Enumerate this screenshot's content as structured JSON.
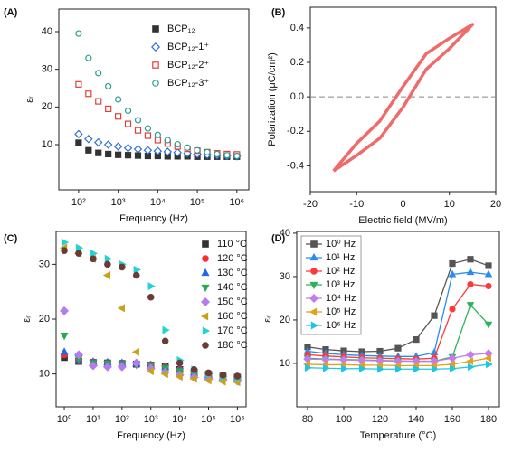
{
  "chart_data": [
    {
      "type": "scatter",
      "label": "(A)",
      "xlabel": "Frequency (Hz)",
      "ylabel": "εᵣ",
      "xscale": "log",
      "xlim": [
        31.6,
        2000000
      ],
      "ylim": [
        -2,
        46
      ],
      "xticks": [
        {
          "value": 100,
          "label": "10²"
        },
        {
          "value": 1000,
          "label": "10³"
        },
        {
          "value": 10000,
          "label": "10⁴"
        },
        {
          "value": 100000,
          "label": "10⁵"
        },
        {
          "value": 1000000,
          "label": "10⁶"
        }
      ],
      "yticks": [
        10,
        20,
        30,
        40
      ],
      "legend": "upper right",
      "x": [
        100,
        178,
        316,
        562,
        1000,
        1778,
        3162,
        5623,
        10000,
        17783,
        31623,
        56234,
        100000,
        177828,
        316228,
        562341,
        1000000
      ],
      "series": [
        {
          "name": "BCP₁₂",
          "color": "#333333",
          "marker": "square",
          "filled": true,
          "values": [
            10.5,
            8.5,
            7.8,
            7.5,
            7.3,
            7.2,
            7.1,
            7.0,
            7.0,
            6.9,
            6.9,
            6.9,
            6.8,
            6.8,
            6.8,
            6.8,
            6.8
          ]
        },
        {
          "name": "BCP₁₂-1⁺",
          "color": "#2e6fd8",
          "marker": "diamond",
          "filled": false,
          "values": [
            12.8,
            11.5,
            10.6,
            10.0,
            9.5,
            9.1,
            8.8,
            8.5,
            8.3,
            8.1,
            7.9,
            7.7,
            7.5,
            7.3,
            7.2,
            7.0,
            6.9
          ]
        },
        {
          "name": "BCP₁₂-2⁺",
          "color": "#e0403a",
          "marker": "square",
          "filled": false,
          "values": [
            26,
            23.5,
            21.5,
            19.5,
            17.5,
            15.5,
            13.8,
            12.4,
            11.2,
            10.3,
            9.5,
            8.9,
            8.4,
            8.0,
            7.7,
            7.5,
            7.4
          ]
        },
        {
          "name": "BCP₁₂-3⁺",
          "color": "#2a9d8f",
          "marker": "circle",
          "filled": false,
          "values": [
            39.5,
            33,
            29,
            25.5,
            22,
            19,
            16.5,
            14.3,
            12.6,
            11.2,
            10.1,
            9.2,
            8.5,
            8.0,
            7.5,
            7.2,
            7.0
          ]
        }
      ]
    },
    {
      "type": "line",
      "label": "(B)",
      "xlabel": "Electric field (MV/m)",
      "ylabel": "Polarization (μC/cm²)",
      "xlim": [
        -20,
        20
      ],
      "ylim": [
        -0.55,
        0.52
      ],
      "xticks": [
        -20,
        -10,
        0,
        10,
        20
      ],
      "yticks": [
        -0.4,
        -0.2,
        {
          "value": 0,
          "label": "0.0"
        },
        0.2,
        0.4
      ],
      "hlines": [
        0
      ],
      "vlines": [
        0
      ],
      "x": [
        -15,
        -10,
        -5,
        0,
        5,
        10,
        15,
        10,
        5,
        0,
        -5,
        -10,
        -15
      ],
      "series": [
        {
          "color": "#f06a6a",
          "values": [
            -0.43,
            -0.34,
            -0.24,
            -0.06,
            0.16,
            0.28,
            0.42,
            0.34,
            0.25,
            0.06,
            -0.14,
            -0.27,
            -0.43
          ]
        }
      ]
    },
    {
      "type": "scatter",
      "label": "(C)",
      "xlabel": "Frequency (Hz)",
      "ylabel": "εᵣ",
      "xscale": "log",
      "xlim": [
        0.52,
        2000000
      ],
      "ylim": [
        4,
        36
      ],
      "xticks": [
        {
          "value": 1,
          "label": "10⁰"
        },
        {
          "value": 10,
          "label": "10¹"
        },
        {
          "value": 100,
          "label": "10²"
        },
        {
          "value": 1000,
          "label": "10³"
        },
        {
          "value": 10000,
          "label": "10⁴"
        },
        {
          "value": 100000,
          "label": "10⁵"
        },
        {
          "value": 1000000,
          "label": "10⁶"
        }
      ],
      "yticks": [
        10,
        20,
        30
      ],
      "legend": "right",
      "x": [
        1,
        3.162,
        10,
        31.62,
        100,
        316.2,
        1000,
        3162,
        10000,
        31620,
        100000,
        316200,
        1000000
      ],
      "series": [
        {
          "name": "110 °C",
          "color": "#333333",
          "marker": "square",
          "filled": true,
          "values": [
            13,
            12.3,
            12.1,
            12.0,
            11.9,
            11.8,
            11.6,
            11.3,
            10.8,
            10.3,
            9.9,
            9.6,
            9.4
          ]
        },
        {
          "name": "120 °C",
          "color": "#ff2a2a",
          "marker": "circle",
          "filled": true,
          "values": [
            13.5,
            12.4,
            12.2,
            12.1,
            12.0,
            11.9,
            11.7,
            11.3,
            10.8,
            10.3,
            9.9,
            9.6,
            9.4
          ]
        },
        {
          "name": "130 °C",
          "color": "#2266ee",
          "marker": "triangle-up",
          "filled": true,
          "values": [
            14,
            12.5,
            12.2,
            12.1,
            12.0,
            11.9,
            11.6,
            11.2,
            10.7,
            10.2,
            9.8,
            9.5,
            9.3
          ]
        },
        {
          "name": "140 °C",
          "color": "#22aa55",
          "marker": "triangle-down",
          "filled": true,
          "values": [
            17,
            12.8,
            12.0,
            11.9,
            11.8,
            11.7,
            11.5,
            11.0,
            10.5,
            10.0,
            9.6,
            9.3,
            9.1
          ]
        },
        {
          "name": "150 °C",
          "color": "#b57bef",
          "marker": "diamond",
          "filled": true,
          "values": [
            21.5,
            13.5,
            11.5,
            11.3,
            11.3,
            12.0,
            11.0,
            10.3,
            9.8,
            9.4,
            9.1,
            8.9,
            8.7
          ]
        },
        {
          "name": "160 °C",
          "color": "#c9a21a",
          "marker": "triangle-left",
          "filled": true,
          "values": [
            33,
            32,
            31,
            28,
            22,
            14,
            10.5,
            10.0,
            9.5,
            9.1,
            8.8,
            8.6,
            8.5
          ]
        },
        {
          "name": "170 °C",
          "color": "#22d3d3",
          "marker": "triangle-right",
          "filled": true,
          "values": [
            34,
            33,
            32,
            31,
            30,
            29,
            26,
            18,
            12.5,
            10.8,
            10.0,
            9.5,
            9.2
          ]
        },
        {
          "name": "180 °C",
          "color": "#6b3b34",
          "marker": "circle",
          "filled": true,
          "values": [
            32.5,
            32,
            31,
            30,
            29.5,
            28,
            24,
            16,
            12,
            10.8,
            10.2,
            9.8,
            9.6
          ]
        }
      ]
    },
    {
      "type": "line",
      "label": "(D)",
      "xlabel": "Temperature (°C)",
      "ylabel": "εᵣ",
      "xlim": [
        74,
        186
      ],
      "ylim": [
        0,
        40.4
      ],
      "xticks": [
        80,
        100,
        120,
        140,
        160,
        180
      ],
      "yticks": [
        10,
        20,
        30,
        40
      ],
      "legend": "upper left",
      "x": [
        80,
        90,
        100,
        110,
        120,
        130,
        140,
        150,
        160,
        170,
        180
      ],
      "series": [
        {
          "name": "10⁰ Hz",
          "color": "#555555",
          "marker": "square",
          "filled": true,
          "values": [
            13.8,
            13.2,
            12.9,
            12.7,
            12.8,
            13.5,
            15.5,
            21,
            33,
            34,
            32.5
          ]
        },
        {
          "name": "10¹ Hz",
          "color": "#2a8cf0",
          "marker": "triangle-up",
          "filled": true,
          "values": [
            12.8,
            12.3,
            12.0,
            11.8,
            11.7,
            11.6,
            11.6,
            12.5,
            30.5,
            31,
            30.5
          ]
        },
        {
          "name": "10² Hz",
          "color": "#ff3838",
          "marker": "circle",
          "filled": true,
          "values": [
            12.0,
            11.7,
            11.5,
            11.3,
            11.2,
            11.1,
            11.0,
            11.2,
            22.5,
            28.2,
            27.8
          ]
        },
        {
          "name": "10³ Hz",
          "color": "#2cb35a",
          "marker": "triangle-down",
          "filled": true,
          "values": [
            11.2,
            11.0,
            10.9,
            10.8,
            10.7,
            10.6,
            10.5,
            10.5,
            11.5,
            23.5,
            19
          ]
        },
        {
          "name": "10⁴ Hz",
          "color": "#c27cf2",
          "marker": "diamond",
          "filled": true,
          "values": [
            11.0,
            10.9,
            10.8,
            10.7,
            10.6,
            10.5,
            10.5,
            10.5,
            11.2,
            12,
            12.3
          ]
        },
        {
          "name": "10⁵ Hz",
          "color": "#e3a21a",
          "marker": "triangle-left",
          "filled": true,
          "values": [
            9.8,
            9.7,
            9.7,
            9.6,
            9.6,
            9.5,
            9.5,
            9.5,
            9.8,
            10.5,
            11.2
          ]
        },
        {
          "name": "10⁶ Hz",
          "color": "#1ec6e6",
          "marker": "triangle-right",
          "filled": true,
          "values": [
            9.0,
            8.9,
            8.8,
            8.8,
            8.7,
            8.7,
            8.7,
            8.7,
            8.8,
            9.2,
            9.8
          ]
        }
      ]
    }
  ]
}
